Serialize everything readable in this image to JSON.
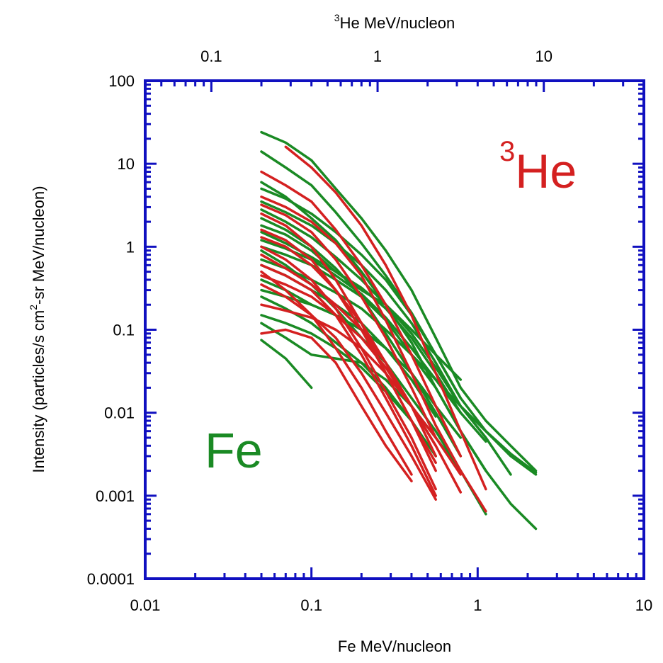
{
  "chart_data": {
    "type": "line",
    "xlabel": "Fe MeV/nucleon",
    "x2label": {
      "sup": "3",
      "text": "He MeV/nucleon"
    },
    "ylabel": {
      "pre": "Intensity (particles/s cm",
      "sup": "2",
      "post": "-sr MeV/nucleon)"
    },
    "xscale": "log",
    "yscale": "log",
    "xlim": [
      0.01,
      10
    ],
    "x2lim": [
      0.04,
      40
    ],
    "ylim": [
      0.0001,
      100
    ],
    "grid": false,
    "x_tick_labels": [
      "0.01",
      "0.1",
      "1",
      "10"
    ],
    "x2_tick_labels": [
      "0.1",
      "1",
      "10"
    ],
    "y_tick_labels": [
      "0.0001",
      "0.001",
      "0.01",
      "0.1",
      "1",
      "10",
      "100"
    ],
    "axis_color": "#1010c0",
    "annotations": [
      {
        "id": "he3",
        "sup": "3",
        "text": "He",
        "color": "#d42020"
      },
      {
        "id": "fe",
        "text": "Fe",
        "color": "#1a8a24"
      }
    ],
    "series": [
      {
        "name": "Fe",
        "color": "#1a8a24",
        "spectra": [
          {
            "x": [
              0.05,
              0.07,
              0.1,
              0.14,
              0.2,
              0.28,
              0.4,
              0.56,
              0.79,
              1.12,
              1.58,
              2.24
            ],
            "y": [
              24,
              18,
              11,
              5,
              2.2,
              0.9,
              0.3,
              0.08,
              0.02,
              0.008,
              0.004,
              0.002
            ]
          },
          {
            "x": [
              0.05,
              0.07,
              0.1,
              0.14,
              0.2,
              0.28,
              0.4,
              0.56,
              0.79,
              1.12,
              1.58,
              2.24
            ],
            "y": [
              14,
              9,
              5.5,
              2.6,
              1.1,
              0.45,
              0.16,
              0.05,
              0.015,
              0.006,
              0.0032,
              0.0019
            ]
          },
          {
            "x": [
              0.05,
              0.07,
              0.1,
              0.14,
              0.2,
              0.28,
              0.4,
              0.56,
              0.79,
              1.12,
              1.58,
              2.24
            ],
            "y": [
              6,
              4,
              2.2,
              1.2,
              0.5,
              0.2,
              0.07,
              0.02,
              0.006,
              0.002,
              0.0008,
              0.0004
            ]
          },
          {
            "x": [
              0.05,
              0.07,
              0.1,
              0.14,
              0.2,
              0.28,
              0.4,
              0.56,
              0.79,
              1.12,
              1.58
            ],
            "y": [
              3.5,
              2.6,
              1.8,
              1.1,
              0.6,
              0.3,
              0.12,
              0.04,
              0.012,
              0.005,
              0.0018
            ]
          },
          {
            "x": [
              0.05,
              0.07,
              0.1,
              0.14,
              0.2,
              0.28,
              0.4,
              0.56,
              0.79
            ],
            "y": [
              2.2,
              1.6,
              1.0,
              0.55,
              0.25,
              0.09,
              0.03,
              0.01,
              0.003
            ]
          },
          {
            "x": [
              0.05,
              0.07,
              0.1,
              0.14,
              0.2,
              0.28,
              0.4,
              0.56,
              0.79
            ],
            "y": [
              1.5,
              1.1,
              0.75,
              0.5,
              0.32,
              0.18,
              0.08,
              0.03,
              0.01
            ]
          },
          {
            "x": [
              0.05,
              0.07,
              0.1,
              0.14,
              0.2,
              0.28,
              0.4,
              0.56,
              0.79,
              1.12
            ],
            "y": [
              1.0,
              0.8,
              0.6,
              0.4,
              0.25,
              0.13,
              0.05,
              0.02,
              0.006,
              0.002
            ]
          },
          {
            "x": [
              0.05,
              0.07,
              0.1,
              0.14,
              0.2,
              0.28,
              0.4,
              0.56,
              0.79,
              1.12
            ],
            "y": [
              0.9,
              0.6,
              0.35,
              0.18,
              0.08,
              0.04,
              0.015,
              0.006,
              0.002,
              0.0006
            ]
          },
          {
            "x": [
              0.05,
              0.07,
              0.1,
              0.14,
              0.2,
              0.28,
              0.4,
              0.56
            ],
            "y": [
              0.6,
              0.45,
              0.3,
              0.2,
              0.12,
              0.06,
              0.025,
              0.009
            ]
          },
          {
            "x": [
              0.05,
              0.07,
              0.1,
              0.14,
              0.2,
              0.28,
              0.4,
              0.56,
              0.79
            ],
            "y": [
              0.4,
              0.3,
              0.2,
              0.15,
              0.1,
              0.06,
              0.03,
              0.012,
              0.005
            ]
          },
          {
            "x": [
              0.05,
              0.07,
              0.1,
              0.14,
              0.2,
              0.28,
              0.4
            ],
            "y": [
              0.25,
              0.18,
              0.12,
              0.07,
              0.04,
              0.02,
              0.008
            ]
          },
          {
            "x": [
              0.05,
              0.07,
              0.1,
              0.14,
              0.2,
              0.28,
              0.4,
              0.56
            ],
            "y": [
              0.15,
              0.12,
              0.09,
              0.06,
              0.035,
              0.018,
              0.008,
              0.003
            ]
          },
          {
            "x": [
              0.05,
              0.07,
              0.1
            ],
            "y": [
              0.075,
              0.045,
              0.02
            ]
          },
          {
            "x": [
              0.05,
              0.07,
              0.1,
              0.14,
              0.2,
              0.28,
              0.4,
              0.56,
              0.79
            ],
            "y": [
              0.12,
              0.08,
              0.05,
              0.045,
              0.04,
              0.025,
              0.012,
              0.005,
              0.002
            ]
          },
          {
            "x": [
              0.05,
              0.07,
              0.1,
              0.14,
              0.2,
              0.28,
              0.4,
              0.56,
              0.79
            ],
            "y": [
              5,
              3.8,
              2.5,
              1.5,
              0.8,
              0.4,
              0.15,
              0.05,
              0.015
            ]
          },
          {
            "x": [
              0.05,
              0.07,
              0.1,
              0.14,
              0.2,
              0.28,
              0.4,
              0.56,
              0.79
            ],
            "y": [
              1.8,
              1.4,
              0.9,
              0.5,
              0.3,
              0.2,
              0.1,
              0.05,
              0.025
            ]
          },
          {
            "x": [
              0.05,
              0.07,
              0.1,
              0.14,
              0.2,
              0.28,
              0.4,
              0.56,
              0.79,
              1.12,
              1.58,
              2.24
            ],
            "y": [
              0.7,
              0.55,
              0.4,
              0.28,
              0.18,
              0.1,
              0.05,
              0.025,
              0.012,
              0.006,
              0.003,
              0.0018
            ]
          },
          {
            "x": [
              0.05,
              0.07,
              0.1,
              0.14,
              0.2,
              0.28,
              0.4
            ],
            "y": [
              0.3,
              0.25,
              0.2,
              0.15,
              0.1,
              0.06,
              0.03
            ]
          },
          {
            "x": [
              0.05,
              0.07,
              0.1,
              0.14,
              0.2,
              0.28,
              0.4,
              0.56,
              0.79
            ],
            "y": [
              2.8,
              2.0,
              1.3,
              0.75,
              0.4,
              0.2,
              0.09,
              0.035,
              0.012
            ]
          },
          {
            "x": [
              0.05,
              0.07,
              0.1,
              0.14,
              0.2,
              0.28,
              0.4,
              0.56,
              0.79,
              1.12
            ],
            "y": [
              1.2,
              0.95,
              0.7,
              0.45,
              0.27,
              0.14,
              0.06,
              0.025,
              0.01,
              0.0045
            ]
          }
        ]
      },
      {
        "name": "3He",
        "color": "#d42020",
        "spectra": [
          {
            "x": [
              0.07,
              0.1,
              0.14,
              0.2,
              0.28,
              0.4,
              0.56,
              0.79,
              1.12
            ],
            "y": [
              16,
              9,
              4.5,
              1.8,
              0.6,
              0.15,
              0.03,
              0.006,
              0.0012
            ]
          },
          {
            "x": [
              0.05,
              0.07,
              0.1,
              0.14,
              0.2,
              0.28,
              0.4,
              0.56,
              0.79
            ],
            "y": [
              8,
              5.5,
              3.5,
              1.6,
              0.6,
              0.2,
              0.05,
              0.012,
              0.003
            ]
          },
          {
            "x": [
              0.05,
              0.07,
              0.1,
              0.14,
              0.2,
              0.28,
              0.4,
              0.56,
              0.79,
              1.12
            ],
            "y": [
              4,
              3,
              2,
              1.1,
              0.45,
              0.13,
              0.03,
              0.007,
              0.002,
              0.00065
            ]
          },
          {
            "x": [
              0.05,
              0.07,
              0.1,
              0.14,
              0.2,
              0.28,
              0.4,
              0.56
            ],
            "y": [
              2.5,
              1.8,
              1.0,
              0.4,
              0.12,
              0.03,
              0.008,
              0.0025
            ]
          },
          {
            "x": [
              0.05,
              0.07,
              0.1,
              0.14,
              0.2,
              0.28,
              0.4,
              0.56
            ],
            "y": [
              1.6,
              1.2,
              0.7,
              0.3,
              0.1,
              0.03,
              0.008,
              0.002
            ]
          },
          {
            "x": [
              0.05,
              0.07,
              0.1,
              0.14,
              0.2,
              0.28,
              0.4,
              0.56
            ],
            "y": [
              1.0,
              0.7,
              0.4,
              0.18,
              0.06,
              0.018,
              0.005,
              0.0012
            ]
          },
          {
            "x": [
              0.05,
              0.07,
              0.1,
              0.14,
              0.2,
              0.28,
              0.4,
              0.56
            ],
            "y": [
              0.6,
              0.45,
              0.3,
              0.15,
              0.05,
              0.015,
              0.004,
              0.001
            ]
          },
          {
            "x": [
              0.05,
              0.07,
              0.1,
              0.14,
              0.2,
              0.28,
              0.4,
              0.56
            ],
            "y": [
              0.35,
              0.25,
              0.15,
              0.08,
              0.03,
              0.01,
              0.003,
              0.0009
            ]
          },
          {
            "x": [
              0.05,
              0.07,
              0.1,
              0.14,
              0.2,
              0.28,
              0.4
            ],
            "y": [
              0.09,
              0.1,
              0.08,
              0.04,
              0.012,
              0.004,
              0.0015
            ]
          },
          {
            "x": [
              0.05,
              0.07,
              0.1,
              0.14,
              0.2,
              0.28,
              0.4,
              0.56
            ],
            "y": [
              3.2,
              2.4,
              1.5,
              0.7,
              0.25,
              0.08,
              0.02,
              0.005
            ]
          },
          {
            "x": [
              0.05,
              0.07,
              0.1,
              0.14,
              0.2,
              0.28,
              0.4,
              0.56
            ],
            "y": [
              0.8,
              0.55,
              0.35,
              0.2,
              0.1,
              0.04,
              0.012,
              0.003
            ]
          },
          {
            "x": [
              0.05,
              0.07,
              0.1,
              0.14,
              0.2,
              0.28,
              0.4,
              0.56,
              0.79
            ],
            "y": [
              0.45,
              0.35,
              0.25,
              0.15,
              0.08,
              0.035,
              0.012,
              0.004,
              0.0011
            ]
          },
          {
            "x": [
              0.05,
              0.07,
              0.1,
              0.14,
              0.2,
              0.28,
              0.4,
              0.56,
              0.79
            ],
            "y": [
              0.2,
              0.17,
              0.14,
              0.1,
              0.06,
              0.03,
              0.012,
              0.005,
              0.0018
            ]
          },
          {
            "x": [
              0.05,
              0.07,
              0.1,
              0.14,
              0.2,
              0.28,
              0.4
            ],
            "y": [
              0.5,
              0.3,
              0.15,
              0.06,
              0.02,
              0.006,
              0.0018
            ]
          },
          {
            "x": [
              0.05,
              0.07,
              0.1,
              0.14,
              0.2,
              0.28,
              0.4,
              0.56
            ],
            "y": [
              1.3,
              1.0,
              0.6,
              0.3,
              0.12,
              0.04,
              0.012,
              0.004
            ]
          }
        ]
      }
    ]
  }
}
